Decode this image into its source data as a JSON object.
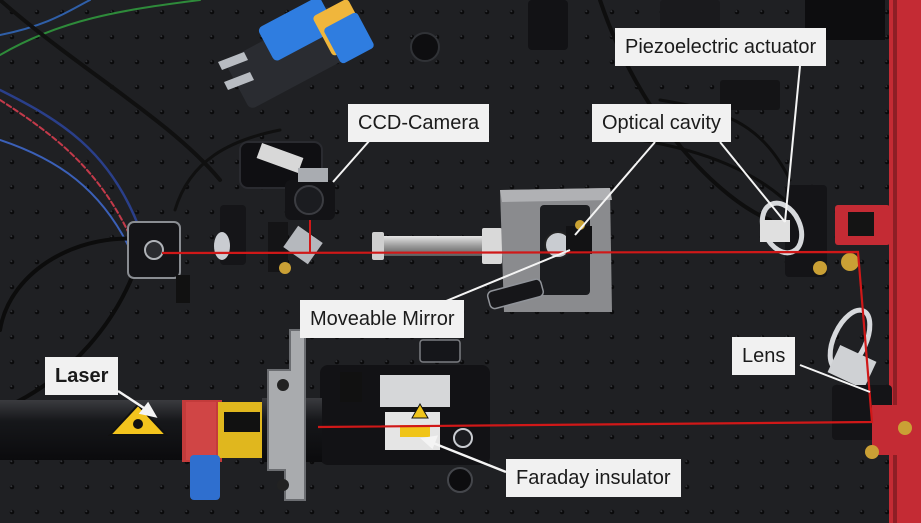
{
  "labels": {
    "piezo": "Piezoelectric actuator",
    "ccd": "CCD-Camera",
    "cavity": "Optical cavity",
    "mirror": "Moveable Mirror",
    "lens": "Lens",
    "laser": "Laser",
    "faraday": "Faraday insulator"
  },
  "colors": {
    "table": "#1f2023",
    "beam": "#d01818",
    "label_bg": "#f1f1f1",
    "label_text": "#1b1b1b",
    "leader": "#f4f4f4"
  }
}
